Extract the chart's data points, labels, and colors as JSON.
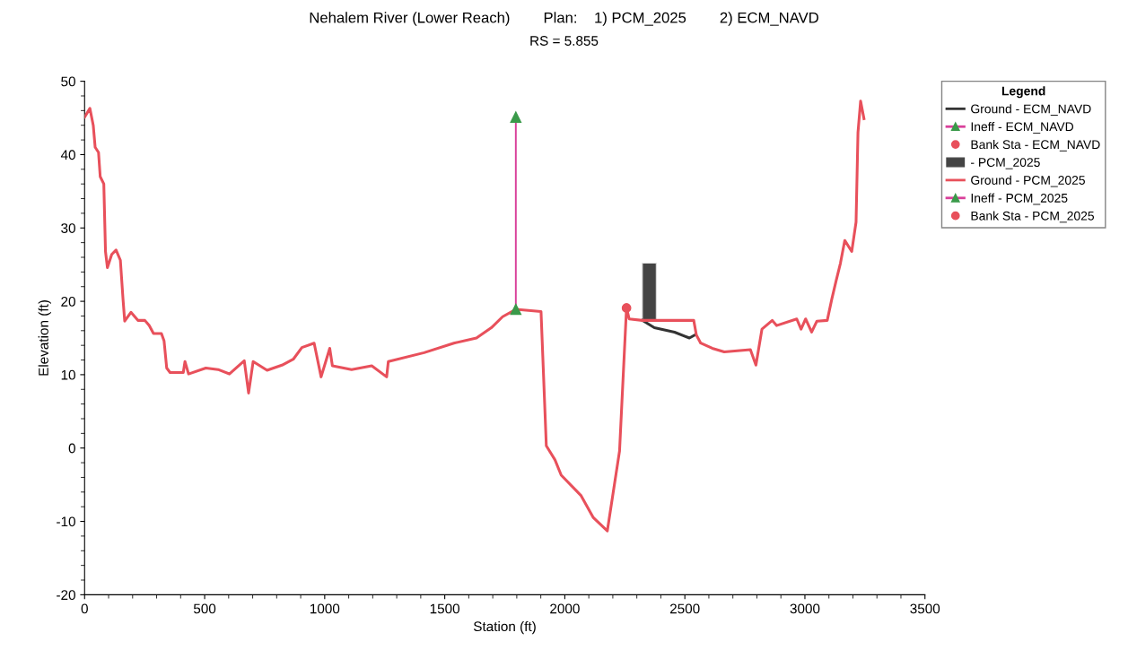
{
  "chart_data": {
    "type": "line",
    "title": "Nehalem River (Lower Reach)        Plan:    1) PCM_2025        2) ECM_NAVD",
    "subtitle": "RS = 5.855",
    "xlabel": "Station (ft)",
    "ylabel": "Elevation (ft)",
    "legend_title": "Legend",
    "legend": "right",
    "grid": false,
    "xlim": [
      0,
      3500
    ],
    "xticks": [
      0,
      500,
      1000,
      1500,
      2000,
      2500,
      3000,
      3500
    ],
    "ylim": [
      -20,
      50
    ],
    "yticks": [
      -20,
      -10,
      0,
      10,
      20,
      30,
      40,
      50
    ],
    "series": [
      {
        "name": "Ground - ECM_NAVD",
        "color": "#333333",
        "marker": "none",
        "x": [
          2323,
          2373,
          2457,
          2519,
          2541
        ],
        "values": [
          17.4,
          16.4,
          15.8,
          15.0,
          15.4
        ]
      },
      {
        "name": "Ineff - ECM_NAVD",
        "type": "line",
        "color": "#d9409a",
        "marker": "triangle"
      },
      {
        "name": "Bank Sta - ECM_NAVD",
        "type": "scatter",
        "color": "#e8505b",
        "marker": "circle"
      },
      {
        "name": "- PCM_2025",
        "type": "bar",
        "color": "#444444",
        "x": [
          2352
        ],
        "base": [
          17.4
        ],
        "values": [
          7.8
        ]
      },
      {
        "name": "Ground - PCM_2025",
        "color": "#e8505b",
        "marker": "none",
        "x": [
          0,
          22,
          36,
          44,
          58,
          65,
          80,
          87,
          95,
          113,
          131,
          149,
          160,
          167,
          193,
          222,
          251,
          269,
          287,
          320,
          331,
          342,
          356,
          411,
          418,
          433,
          505,
          556,
          603,
          665,
          683,
          702,
          760,
          822,
          869,
          905,
          956,
          985,
          1021,
          1032,
          1112,
          1196,
          1258,
          1265,
          1414,
          1538,
          1632,
          1694,
          1741,
          1796,
          1901,
          1923,
          1959,
          1985,
          2068,
          2119,
          2177,
          2228,
          2257,
          2268,
          2323,
          2537,
          2548,
          2566,
          2614,
          2664,
          2773,
          2796,
          2821,
          2864,
          2882,
          2966,
          2984,
          3003,
          3028,
          3050,
          3093,
          3112,
          3130,
          3148,
          3166,
          3195,
          3213,
          3221,
          3232,
          3246
        ],
        "values": [
          45.1,
          46.3,
          44.0,
          41.0,
          40.3,
          37.0,
          36.0,
          26.8,
          24.6,
          26.4,
          27.0,
          25.6,
          20.3,
          17.3,
          18.5,
          17.4,
          17.4,
          16.7,
          15.6,
          15.6,
          14.6,
          10.9,
          10.3,
          10.3,
          11.8,
          10.1,
          10.9,
          10.7,
          10.1,
          11.9,
          7.5,
          11.8,
          10.6,
          11.3,
          12.1,
          13.7,
          14.3,
          9.7,
          13.6,
          11.2,
          10.7,
          11.2,
          9.7,
          11.8,
          13.0,
          14.3,
          15.0,
          16.4,
          17.9,
          18.9,
          18.6,
          0.3,
          -1.6,
          -3.7,
          -6.5,
          -9.5,
          -11.3,
          -0.4,
          19.1,
          17.6,
          17.4,
          17.4,
          15.4,
          14.3,
          13.6,
          13.1,
          13.4,
          11.3,
          16.2,
          17.4,
          16.7,
          17.6,
          16.2,
          17.6,
          15.8,
          17.3,
          17.4,
          20.3,
          22.8,
          25.2,
          28.3,
          26.8,
          30.8,
          43.0,
          47.3,
          44.9
        ]
      },
      {
        "name": "Ineff - PCM_2025",
        "type": "line",
        "color": "#d9409a",
        "marker": "triangle",
        "x": [
          1796,
          1796
        ],
        "values": [
          18.9,
          45.1
        ]
      },
      {
        "name": "Bank Sta - PCM_2025",
        "type": "scatter",
        "color": "#e8505b",
        "marker": "circle",
        "x": [
          2257
        ],
        "values": [
          19.1
        ]
      }
    ]
  }
}
